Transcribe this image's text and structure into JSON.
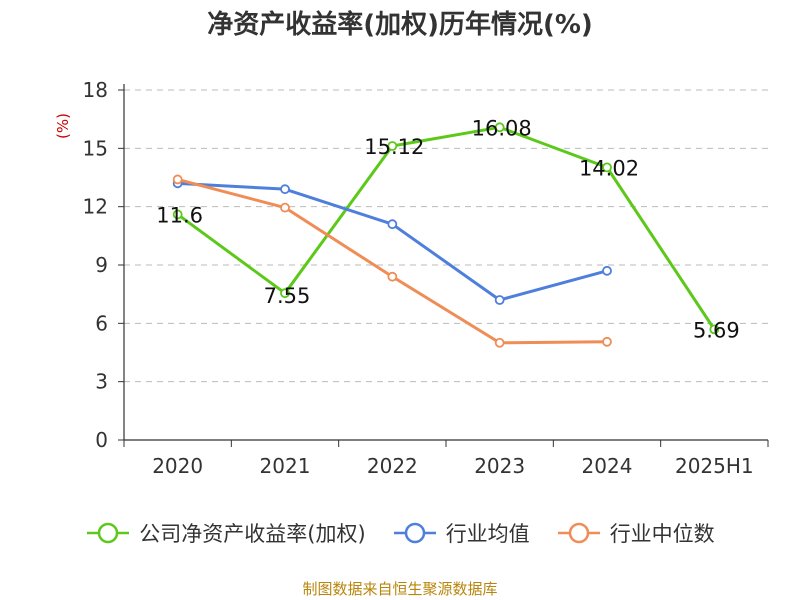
{
  "chart_data": {
    "type": "line",
    "title": "净资产收益率(加权)历年情况(%)",
    "ylabel": "(%)",
    "categories": [
      "2020",
      "2021",
      "2022",
      "2023",
      "2024",
      "2025H1"
    ],
    "ylim": [
      0,
      18
    ],
    "yticks": [
      0,
      3,
      6,
      9,
      12,
      15,
      18
    ],
    "grid": true,
    "legend_position": "bottom",
    "series": [
      {
        "name": "公司净资产收益率(加权)",
        "color": "#5cc91a",
        "values": [
          11.6,
          7.55,
          15.12,
          16.08,
          14.02,
          5.69
        ],
        "data_labels": [
          "11.6",
          "7.55",
          "15.12",
          "16.08",
          "14.02",
          "5.69"
        ]
      },
      {
        "name": "行业均值",
        "color": "#4f7fdc",
        "values": [
          13.2,
          12.9,
          11.1,
          7.2,
          8.7,
          null
        ]
      },
      {
        "name": "行业中位数",
        "color": "#f08c55",
        "values": [
          13.4,
          11.95,
          8.4,
          5.0,
          5.05,
          null
        ]
      }
    ]
  },
  "source": "制图数据来自恒生聚源数据库"
}
